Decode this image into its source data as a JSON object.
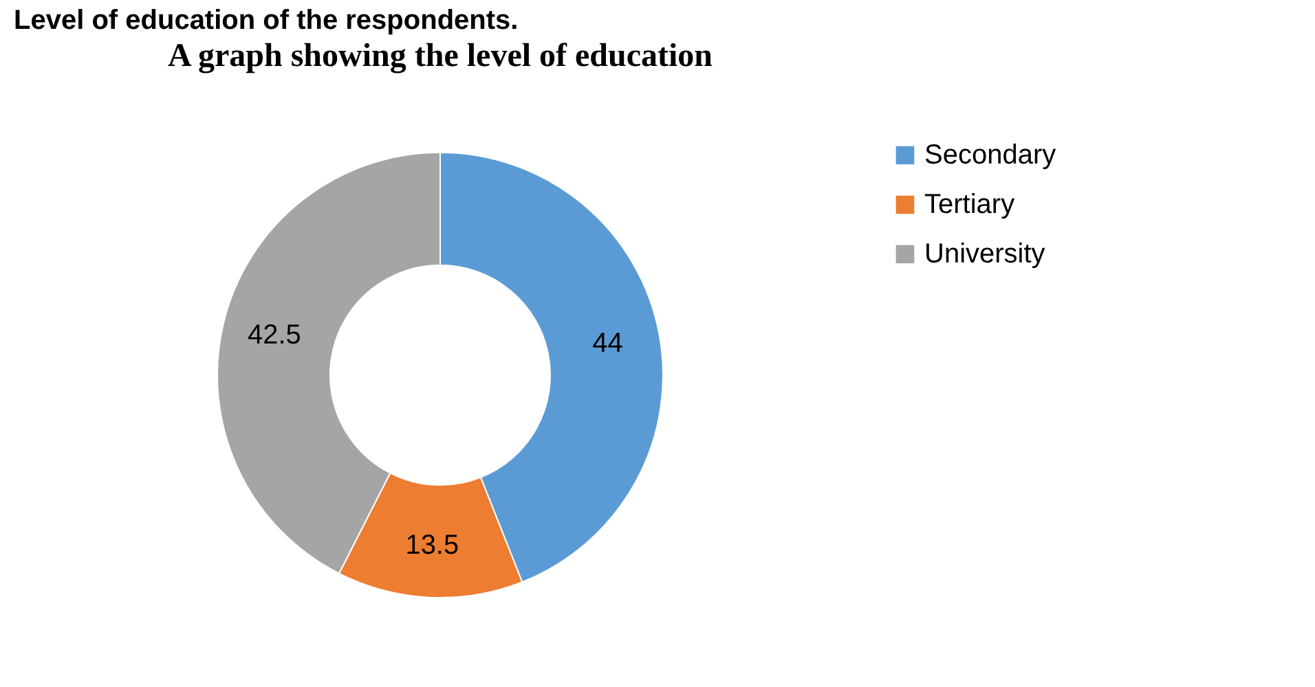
{
  "chart_data": {
    "type": "donut",
    "title": "A graph showing the level of education",
    "annotations": [
      "Level of education of the respondents."
    ],
    "categories": [
      "Secondary",
      "Tertiary",
      "University"
    ],
    "values": [
      44,
      13.5,
      42.5
    ],
    "colors": [
      "#5b9bd5",
      "#ed7d31",
      "#a5a5a5"
    ],
    "data_labels": true,
    "legend": "right"
  }
}
